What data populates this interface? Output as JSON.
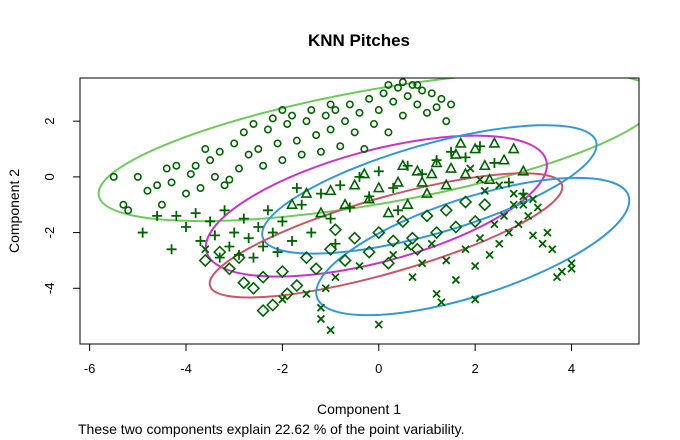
{
  "chart_data": {
    "type": "scatter",
    "title": "KNN Pitches",
    "xlabel": "Component 1",
    "ylabel": "Component 2",
    "caption": "These two components explain 22.62 % of the point variability.",
    "xlim": [
      -6.2,
      5.4
    ],
    "ylim": [
      -6.0,
      3.55
    ],
    "xticks": [
      -6,
      -4,
      -2,
      0,
      2,
      4
    ],
    "yticks": [
      -4,
      -2,
      0,
      2
    ],
    "grid": false,
    "legend": "none",
    "point_color": "#006400",
    "clusters": [
      {
        "marker": "circle",
        "ellipse": {
          "cx": 0.0,
          "cy": 1.1,
          "rx": 5.9,
          "ry": 2.05,
          "angle_deg": 10,
          "color": "#6ECC5A"
        },
        "points": [
          [
            -5.3,
            -1.0
          ],
          [
            -5.2,
            -1.2
          ],
          [
            -5.0,
            0.0
          ],
          [
            -4.8,
            -0.5
          ],
          [
            -4.6,
            -0.3
          ],
          [
            -4.5,
            -1.0
          ],
          [
            -4.3,
            -0.2
          ],
          [
            -4.2,
            0.4
          ],
          [
            -4.0,
            -0.6
          ],
          [
            -3.9,
            0.1
          ],
          [
            -3.8,
            0.4
          ],
          [
            -3.7,
            -0.4
          ],
          [
            -3.5,
            0.6
          ],
          [
            -3.4,
            0.0
          ],
          [
            -3.3,
            0.9
          ],
          [
            -3.2,
            -0.3
          ],
          [
            -3.0,
            1.2
          ],
          [
            -2.9,
            0.3
          ],
          [
            -2.8,
            1.6
          ],
          [
            -2.7,
            0.8
          ],
          [
            -2.6,
            1.9
          ],
          [
            -2.5,
            1.0
          ],
          [
            -2.4,
            0.4
          ],
          [
            -2.3,
            1.7
          ],
          [
            -2.2,
            2.1
          ],
          [
            -2.1,
            1.2
          ],
          [
            -2.0,
            0.6
          ],
          [
            -1.9,
            1.9
          ],
          [
            -1.8,
            2.2
          ],
          [
            -1.7,
            1.3
          ],
          [
            -1.6,
            0.8
          ],
          [
            -1.5,
            2.0
          ],
          [
            -1.4,
            2.4
          ],
          [
            -1.3,
            1.5
          ],
          [
            -1.2,
            0.9
          ],
          [
            -1.1,
            2.2
          ],
          [
            -1.0,
            1.7
          ],
          [
            -0.9,
            2.4
          ],
          [
            -0.8,
            1.1
          ],
          [
            -0.7,
            2.0
          ],
          [
            -0.6,
            2.6
          ],
          [
            -0.5,
            1.6
          ],
          [
            -0.4,
            2.3
          ],
          [
            -0.3,
            1.0
          ],
          [
            -0.2,
            2.8
          ],
          [
            -0.1,
            1.9
          ],
          [
            0.0,
            2.4
          ],
          [
            0.1,
            3.0
          ],
          [
            0.2,
            1.6
          ],
          [
            0.3,
            2.7
          ],
          [
            0.4,
            3.2
          ],
          [
            0.5,
            2.2
          ],
          [
            0.6,
            2.9
          ],
          [
            0.7,
            3.3
          ],
          [
            0.8,
            2.6
          ],
          [
            0.9,
            3.1
          ],
          [
            1.0,
            2.3
          ],
          [
            1.1,
            3.0
          ],
          [
            1.2,
            2.5
          ],
          [
            1.3,
            2.8
          ],
          [
            1.4,
            2.0
          ],
          [
            1.5,
            2.6
          ],
          [
            -3.1,
            -0.1
          ],
          [
            -2.0,
            2.4
          ],
          [
            -1.0,
            2.6
          ],
          [
            0.2,
            3.3
          ],
          [
            0.5,
            3.4
          ],
          [
            0.8,
            3.3
          ],
          [
            -4.4,
            0.3
          ],
          [
            -3.6,
            1.0
          ],
          [
            -5.5,
            0.0
          ]
        ]
      },
      {
        "marker": "plus",
        "ellipse": {
          "cx": -0.05,
          "cy": -1.05,
          "rx": 3.65,
          "ry": 2.0,
          "angle_deg": 15,
          "color": "#CC33CC"
        },
        "points": [
          [
            -4.9,
            -2.0
          ],
          [
            -4.3,
            -2.6
          ],
          [
            -4.2,
            -1.4
          ],
          [
            -4.0,
            -1.8
          ],
          [
            -3.8,
            -1.3
          ],
          [
            -3.7,
            -2.3
          ],
          [
            -3.5,
            -1.6
          ],
          [
            -3.4,
            -2.1
          ],
          [
            -3.3,
            -2.9
          ],
          [
            -3.2,
            -1.2
          ],
          [
            -3.1,
            -2.5
          ],
          [
            -3.0,
            -2.0
          ],
          [
            -2.9,
            -2.8
          ],
          [
            -2.8,
            -1.5
          ],
          [
            -2.7,
            -2.2
          ],
          [
            -2.6,
            -2.9
          ],
          [
            -2.5,
            -1.8
          ],
          [
            -2.4,
            -2.5
          ],
          [
            -2.3,
            -1.2
          ],
          [
            -2.2,
            -2.0
          ],
          [
            -2.1,
            -2.7
          ],
          [
            -2.0,
            -1.6
          ],
          [
            -1.8,
            -2.3
          ],
          [
            -1.6,
            -1.0
          ],
          [
            -1.4,
            -2.0
          ],
          [
            -1.2,
            -0.6
          ],
          [
            -1.0,
            -1.5
          ],
          [
            -0.8,
            -0.3
          ],
          [
            -0.6,
            -1.1
          ],
          [
            -0.4,
            0.0
          ],
          [
            -0.2,
            -0.7
          ],
          [
            0.0,
            0.2
          ],
          [
            0.3,
            -0.4
          ],
          [
            0.6,
            0.4
          ],
          [
            0.9,
            0.1
          ],
          [
            1.2,
            0.6
          ],
          [
            1.5,
            0.9
          ],
          [
            1.8,
            0.7
          ],
          [
            2.1,
            1.1
          ],
          [
            2.4,
            0.5
          ],
          [
            2.7,
            -0.2
          ],
          [
            3.0,
            -0.6
          ],
          [
            -4.6,
            -1.4
          ],
          [
            -1.7,
            -0.4
          ],
          [
            -0.9,
            -2.4
          ],
          [
            0.4,
            -1.2
          ]
        ]
      },
      {
        "marker": "triangle",
        "ellipse": {
          "cx": 1.05,
          "cy": -0.45,
          "rx": 3.6,
          "ry": 1.6,
          "angle_deg": 16,
          "color": "#3399DD"
        },
        "points": [
          [
            -1.8,
            -1.0
          ],
          [
            -1.5,
            -0.6
          ],
          [
            -1.2,
            -1.3
          ],
          [
            -1.0,
            -0.5
          ],
          [
            -0.7,
            -1.0
          ],
          [
            -0.5,
            -0.3
          ],
          [
            -0.2,
            -0.8
          ],
          [
            0.0,
            -0.4
          ],
          [
            0.2,
            -1.3
          ],
          [
            0.4,
            -0.2
          ],
          [
            0.6,
            -1.0
          ],
          [
            0.8,
            0.2
          ],
          [
            1.0,
            -0.6
          ],
          [
            1.2,
            0.5
          ],
          [
            1.4,
            -0.3
          ],
          [
            1.6,
            0.8
          ],
          [
            1.8,
            0.1
          ],
          [
            2.0,
            1.0
          ],
          [
            2.2,
            0.4
          ],
          [
            2.4,
            1.2
          ],
          [
            2.6,
            0.6
          ],
          [
            2.8,
            1.0
          ],
          [
            3.0,
            0.2
          ],
          [
            0.5,
            0.4
          ],
          [
            1.1,
            0.1
          ],
          [
            1.7,
            1.2
          ],
          [
            2.3,
            -0.1
          ],
          [
            -0.3,
            0.1
          ],
          [
            0.9,
            -0.2
          ],
          [
            1.5,
            0.3
          ]
        ]
      },
      {
        "marker": "diamond",
        "ellipse": {
          "cx": 0.15,
          "cy": -2.1,
          "rx": 3.8,
          "ry": 1.35,
          "angle_deg": 16,
          "color": "#CC5566"
        },
        "points": [
          [
            -3.6,
            -3.0
          ],
          [
            -3.3,
            -2.7
          ],
          [
            -3.1,
            -3.3
          ],
          [
            -2.9,
            -2.9
          ],
          [
            -2.8,
            -3.8
          ],
          [
            -2.6,
            -4.0
          ],
          [
            -2.4,
            -3.6
          ],
          [
            -2.4,
            -4.8
          ],
          [
            -2.2,
            -4.6
          ],
          [
            -2.0,
            -3.4
          ],
          [
            -1.7,
            -3.9
          ],
          [
            -1.5,
            -2.9
          ],
          [
            -1.3,
            -3.3
          ],
          [
            -1.0,
            -2.6
          ],
          [
            -0.7,
            -3.0
          ],
          [
            -0.5,
            -2.2
          ],
          [
            -0.2,
            -2.7
          ],
          [
            0.0,
            -2.0
          ],
          [
            0.2,
            -3.1
          ],
          [
            0.3,
            -2.3
          ],
          [
            0.5,
            -1.6
          ],
          [
            0.7,
            -2.2
          ],
          [
            1.0,
            -1.4
          ],
          [
            1.2,
            -2.0
          ],
          [
            1.4,
            -1.2
          ],
          [
            1.6,
            -1.8
          ],
          [
            1.8,
            -0.9
          ],
          [
            2.0,
            -1.6
          ],
          [
            2.2,
            -1.0
          ],
          [
            -1.9,
            -4.2
          ],
          [
            -0.9,
            -1.9
          ],
          [
            0.8,
            -2.6
          ]
        ]
      },
      {
        "marker": "x",
        "ellipse": {
          "cx": 1.95,
          "cy": -2.5,
          "rx": 3.4,
          "ry": 1.75,
          "angle_deg": 18,
          "color": "#3399DD"
        },
        "points": [
          [
            -3.6,
            -2.6
          ],
          [
            -2.0,
            -4.4
          ],
          [
            -1.5,
            -4.2
          ],
          [
            -1.2,
            -4.7
          ],
          [
            -1.2,
            -5.1
          ],
          [
            -1.1,
            -4.0
          ],
          [
            -1.0,
            -5.5
          ],
          [
            -0.9,
            -3.6
          ],
          [
            -0.4,
            -3.2
          ],
          [
            0.0,
            -5.3
          ],
          [
            0.3,
            -2.8
          ],
          [
            0.6,
            -2.5
          ],
          [
            0.7,
            -3.6
          ],
          [
            0.9,
            -3.1
          ],
          [
            1.1,
            -2.4
          ],
          [
            1.2,
            -4.2
          ],
          [
            1.4,
            -3.0
          ],
          [
            1.6,
            -3.7
          ],
          [
            1.8,
            -2.6
          ],
          [
            2.0,
            -3.2
          ],
          [
            2.1,
            -2.2
          ],
          [
            2.3,
            -2.8
          ],
          [
            2.4,
            -1.7
          ],
          [
            2.5,
            -2.4
          ],
          [
            2.6,
            -1.4
          ],
          [
            2.7,
            -2.0
          ],
          [
            2.8,
            -1.0
          ],
          [
            2.9,
            -1.7
          ],
          [
            3.0,
            -0.7
          ],
          [
            3.1,
            -1.4
          ],
          [
            3.2,
            -2.1
          ],
          [
            3.3,
            -1.1
          ],
          [
            3.4,
            -2.4
          ],
          [
            3.5,
            -2.0
          ],
          [
            3.6,
            -2.6
          ],
          [
            3.7,
            -3.6
          ],
          [
            3.8,
            -3.4
          ],
          [
            4.0,
            -3.1
          ],
          [
            4.0,
            -3.3
          ],
          [
            2.0,
            -4.4
          ],
          [
            1.3,
            -4.5
          ],
          [
            2.2,
            -0.5
          ],
          [
            2.5,
            -0.3
          ],
          [
            2.8,
            -0.6
          ],
          [
            3.0,
            -1.0
          ],
          [
            3.2,
            -0.8
          ],
          [
            1.9,
            0.3
          ],
          [
            2.1,
            -0.1
          ]
        ]
      }
    ]
  }
}
